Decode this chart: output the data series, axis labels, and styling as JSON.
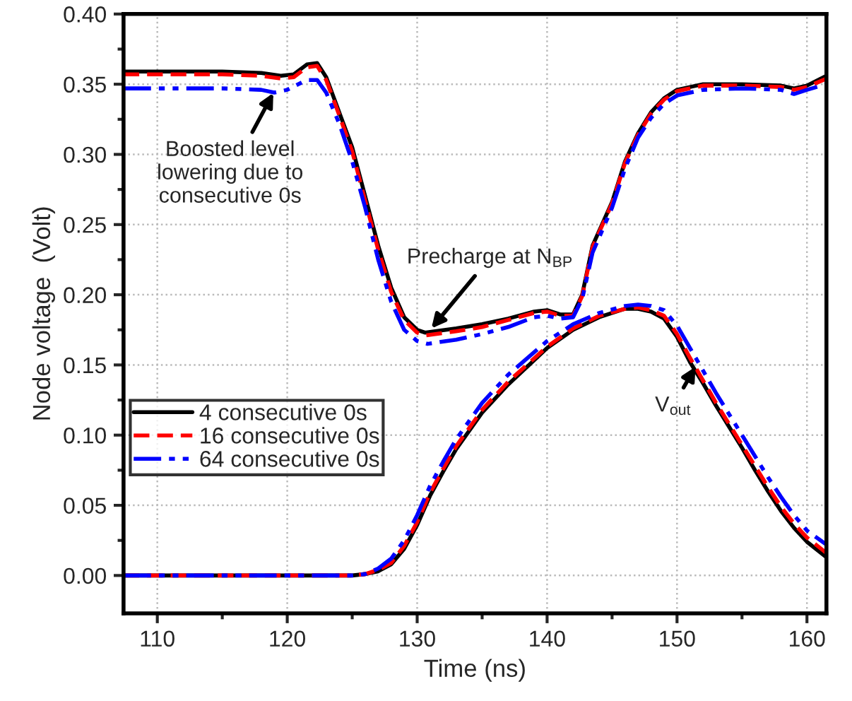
{
  "chart_data": {
    "type": "line",
    "xlabel": "Time (ns)",
    "ylabel": "Node voltage  (Volt)",
    "xlim": [
      107.4,
      161.5
    ],
    "ylim": [
      -0.027,
      0.4
    ],
    "xticks": [
      110,
      {
        "value": 115,
        "label": null
      },
      120,
      {
        "value": 125,
        "label": null
      },
      130,
      {
        "value": 135,
        "label": null
      },
      140,
      {
        "value": 145,
        "label": null
      },
      150,
      {
        "value": 155,
        "label": null
      },
      160
    ],
    "yticks": [
      {
        "value": 0,
        "label": "0.00"
      },
      {
        "value": 0.025,
        "label": null
      },
      0.05,
      {
        "value": 0.075,
        "label": null
      },
      {
        "value": 0.1,
        "label": "0.10"
      },
      {
        "value": 0.125,
        "label": null
      },
      0.15,
      {
        "value": 0.175,
        "label": null
      },
      {
        "value": 0.2,
        "label": "0.20"
      },
      {
        "value": 0.225,
        "label": null
      },
      0.25,
      {
        "value": 0.275,
        "label": null
      },
      {
        "value": 0.3,
        "label": "0.30"
      },
      {
        "value": 0.325,
        "label": null
      },
      0.35,
      {
        "value": 0.375,
        "label": null
      },
      {
        "value": 0.4,
        "label": "0.40"
      }
    ],
    "grid": true,
    "legend": "lower left",
    "marker": "none",
    "series": [
      {
        "name": "4 consecutive 0s",
        "color": "#000000",
        "line_style": "solid",
        "x": [
          107.4,
          115,
          118,
          119.5,
          120.5,
          121.5,
          122.3,
          123,
          124,
          125,
          126,
          127,
          128,
          129,
          130,
          130.6,
          133,
          135,
          137,
          139,
          140,
          141,
          142,
          142.7,
          143.5,
          145,
          146,
          147,
          148,
          149,
          150,
          152,
          155,
          158,
          159,
          160,
          161.5
        ],
        "values": [
          0.359,
          0.359,
          0.358,
          0.356,
          0.357,
          0.364,
          0.365,
          0.355,
          0.33,
          0.305,
          0.27,
          0.235,
          0.205,
          0.184,
          0.175,
          0.173,
          0.176,
          0.179,
          0.183,
          0.188,
          0.189,
          0.186,
          0.186,
          0.2,
          0.235,
          0.266,
          0.295,
          0.315,
          0.33,
          0.34,
          0.346,
          0.35,
          0.35,
          0.349,
          0.347,
          0.349,
          0.356
        ]
      },
      {
        "name": "16 consecutive 0s",
        "color": "#ff0000",
        "line_style": "dashed",
        "x": [
          107.4,
          115,
          118,
          119.5,
          120.5,
          121.5,
          122.3,
          123,
          124,
          125,
          126,
          127,
          128,
          129,
          130,
          130.6,
          133,
          135,
          137,
          139,
          140,
          141,
          142,
          142.7,
          143.5,
          145,
          146,
          147,
          148,
          149,
          150,
          152,
          155,
          158,
          159,
          160,
          161.5
        ],
        "values": [
          0.357,
          0.357,
          0.356,
          0.354,
          0.355,
          0.362,
          0.363,
          0.353,
          0.328,
          0.302,
          0.267,
          0.232,
          0.202,
          0.182,
          0.173,
          0.171,
          0.174,
          0.177,
          0.182,
          0.187,
          0.188,
          0.185,
          0.185,
          0.199,
          0.234,
          0.265,
          0.294,
          0.314,
          0.329,
          0.339,
          0.345,
          0.349,
          0.349,
          0.348,
          0.346,
          0.348,
          0.354
        ]
      },
      {
        "name": "64 consecutive 0s",
        "color": "#0000ff",
        "line_style": "dashdot",
        "x": [
          107.4,
          115,
          118,
          119,
          120,
          121.5,
          122.3,
          123,
          124,
          125,
          126,
          127,
          128,
          129,
          130,
          130.8,
          133,
          135,
          137,
          139,
          140,
          141,
          142,
          142.7,
          143.5,
          145,
          146,
          147,
          148,
          149,
          150,
          152,
          155,
          158,
          159,
          160,
          161.5
        ],
        "values": [
          0.347,
          0.347,
          0.346,
          0.344,
          0.346,
          0.353,
          0.353,
          0.344,
          0.322,
          0.295,
          0.262,
          0.225,
          0.195,
          0.175,
          0.167,
          0.165,
          0.168,
          0.172,
          0.177,
          0.184,
          0.185,
          0.183,
          0.184,
          0.197,
          0.23,
          0.262,
          0.29,
          0.312,
          0.326,
          0.336,
          0.342,
          0.346,
          0.347,
          0.346,
          0.343,
          0.346,
          0.35
        ]
      },
      {
        "color": "#000000",
        "line_style": "solid",
        "x": [
          107.4,
          125,
          126,
          127,
          128,
          129,
          130,
          131,
          132,
          133,
          135,
          137,
          140,
          142,
          144,
          146,
          147,
          148,
          149,
          150,
          151,
          152,
          153,
          154,
          155,
          156,
          157,
          158,
          159,
          160,
          161.5
        ],
        "values": [
          0,
          0,
          0.001,
          0.003,
          0.008,
          0.019,
          0.036,
          0.057,
          0.074,
          0.09,
          0.116,
          0.136,
          0.162,
          0.175,
          0.184,
          0.19,
          0.19,
          0.188,
          0.183,
          0.17,
          0.152,
          0.137,
          0.121,
          0.106,
          0.091,
          0.075,
          0.06,
          0.046,
          0.034,
          0.024,
          0.013
        ]
      },
      {
        "color": "#ff0000",
        "line_style": "dashed",
        "x": [
          107.4,
          125,
          126,
          127,
          128,
          129,
          130,
          131,
          132,
          133,
          135,
          137,
          140,
          142,
          144,
          146,
          147,
          148,
          149,
          150,
          151,
          152,
          153,
          154,
          155,
          156,
          157,
          158,
          159,
          160,
          161.5
        ],
        "values": [
          0,
          0,
          0.001,
          0.004,
          0.009,
          0.021,
          0.038,
          0.059,
          0.076,
          0.092,
          0.118,
          0.138,
          0.163,
          0.176,
          0.185,
          0.19,
          0.191,
          0.189,
          0.185,
          0.172,
          0.155,
          0.139,
          0.123,
          0.108,
          0.093,
          0.078,
          0.063,
          0.049,
          0.037,
          0.027,
          0.016
        ]
      },
      {
        "color": "#0000ff",
        "line_style": "dashdot",
        "x": [
          107.4,
          125,
          126,
          127,
          128,
          129,
          130,
          131,
          132,
          133,
          135,
          137,
          140,
          142,
          144,
          146,
          147,
          148,
          149,
          150,
          151,
          152,
          153,
          154,
          155,
          156,
          157,
          158,
          159,
          160,
          161.5
        ],
        "values": [
          0,
          0,
          0.001,
          0.005,
          0.012,
          0.025,
          0.043,
          0.064,
          0.081,
          0.097,
          0.123,
          0.143,
          0.167,
          0.179,
          0.187,
          0.192,
          0.193,
          0.192,
          0.189,
          0.178,
          0.162,
          0.146,
          0.13,
          0.115,
          0.1,
          0.085,
          0.07,
          0.056,
          0.043,
          0.032,
          0.022
        ]
      }
    ],
    "annotations": [
      {
        "text": "Boosted level\nlowering due to\nconsecutive 0s",
        "x": 119,
        "y": 0.345
      },
      {
        "text": "Precharge at N$_{BP}$",
        "x": 131,
        "y": 0.175
      },
      {
        "text": "V$_{out}$",
        "x": 151.5,
        "y": 0.15
      }
    ]
  }
}
